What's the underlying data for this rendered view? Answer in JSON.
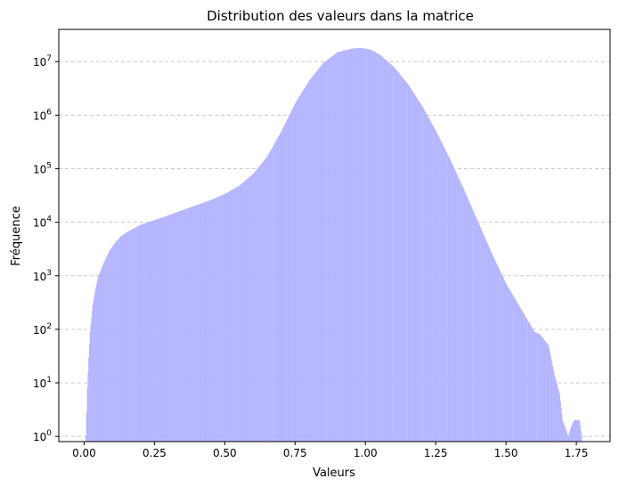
{
  "chart_data": {
    "type": "histogram",
    "title": "Distribution des valeurs dans la matrice",
    "xlabel": "Valeurs",
    "ylabel": "Fréquence",
    "yscale": "log",
    "xlim": [
      -0.09,
      1.87
    ],
    "ylim": [
      0.8,
      40000000
    ],
    "x_ticks": [
      0.0,
      0.25,
      0.5,
      0.75,
      1.0,
      1.25,
      1.5,
      1.75
    ],
    "x_tick_labels": [
      "0.00",
      "0.25",
      "0.50",
      "0.75",
      "1.00",
      "1.25",
      "1.50",
      "1.75"
    ],
    "y_ticks": [
      1,
      10,
      100,
      1000,
      10000,
      100000,
      1000000,
      10000000
    ],
    "y_tick_labels": [
      {
        "base": "10",
        "exp": "0"
      },
      {
        "base": "10",
        "exp": "1"
      },
      {
        "base": "10",
        "exp": "2"
      },
      {
        "base": "10",
        "exp": "3"
      },
      {
        "base": "10",
        "exp": "4"
      },
      {
        "base": "10",
        "exp": "5"
      },
      {
        "base": "10",
        "exp": "6"
      },
      {
        "base": "10",
        "exp": "7"
      }
    ],
    "grid": "y-dashed",
    "bar_color": "#b3b3ff",
    "envelope": {
      "x": [
        0.005,
        0.01,
        0.015,
        0.02,
        0.03,
        0.04,
        0.05,
        0.07,
        0.09,
        0.11,
        0.13,
        0.15,
        0.2,
        0.25,
        0.3,
        0.35,
        0.4,
        0.45,
        0.5,
        0.55,
        0.6,
        0.65,
        0.7,
        0.75,
        0.8,
        0.85,
        0.9,
        0.95,
        0.98,
        1.0,
        1.02,
        1.05,
        1.1,
        1.15,
        1.2,
        1.25,
        1.3,
        1.35,
        1.4,
        1.45,
        1.5,
        1.55,
        1.6,
        1.62,
        1.65,
        1.67,
        1.69,
        1.7,
        1.72,
        1.73,
        1.74,
        1.75,
        1.76,
        1.77
      ],
      "y": [
        1,
        8,
        30,
        90,
        300,
        600,
        1000,
        1800,
        3000,
        4200,
        5500,
        6500,
        9000,
        11000,
        13500,
        17000,
        21000,
        26000,
        34000,
        48000,
        80000,
        170000,
        500000,
        1700000,
        4500000,
        9500000,
        15000000,
        17500000,
        18000000,
        17500000,
        16500000,
        13500000,
        8000000,
        3800000,
        1500000,
        500000,
        150000,
        40000,
        10000,
        2500,
        700,
        250,
        90,
        80,
        50,
        15,
        6,
        2,
        1,
        1.5,
        2,
        2,
        2,
        0.8
      ]
    }
  }
}
